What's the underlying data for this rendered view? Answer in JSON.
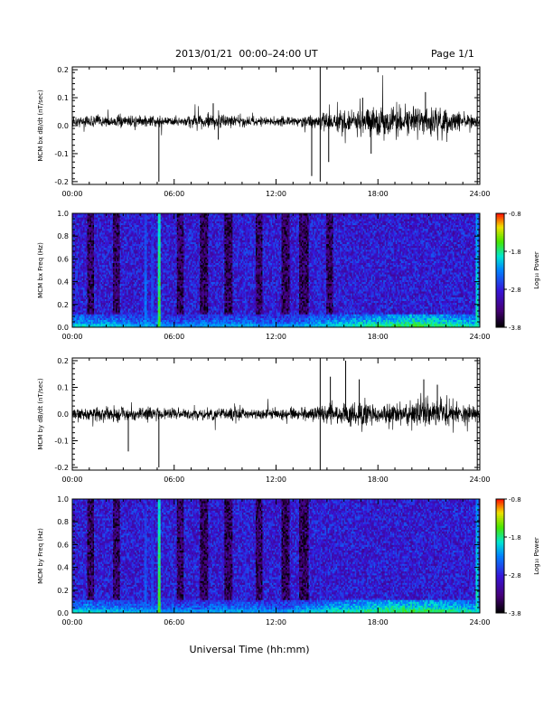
{
  "header": {
    "title": "2013/01/21  00:00–24:00 UT",
    "page": "Page 1/1"
  },
  "footer": {
    "xlabel": "Universal Time (hh:mm)"
  },
  "colorbar": {
    "label": "Log₁₀ Power",
    "ticks": [
      "-0.8",
      "-1.8",
      "-2.8",
      "-3.8"
    ],
    "range": [
      -3.8,
      -0.8
    ]
  },
  "chart_data": [
    {
      "type": "line",
      "id": "bx-timeseries",
      "ylabel": "MCM bx dB/dt (nT/sec)",
      "xlim": [
        0,
        24
      ],
      "ylim": [
        -0.21,
        0.21
      ],
      "xticks": [
        "00:00",
        "06:00",
        "12:00",
        "18:00",
        "24:00"
      ],
      "yticks": [
        "0.2",
        "0.1",
        "0.0",
        "-0.1",
        "-0.2"
      ],
      "baseline": 0.015,
      "envelope": [
        [
          0,
          0.03
        ],
        [
          2,
          0.035
        ],
        [
          4,
          0.035
        ],
        [
          6,
          0.03
        ],
        [
          8,
          0.045
        ],
        [
          10,
          0.03
        ],
        [
          12,
          0.025
        ],
        [
          14,
          0.035
        ],
        [
          15,
          0.05
        ],
        [
          16,
          0.06
        ],
        [
          17,
          0.075
        ],
        [
          18,
          0.09
        ],
        [
          19,
          0.08
        ],
        [
          20,
          0.085
        ],
        [
          21,
          0.09
        ],
        [
          22,
          0.08
        ],
        [
          23,
          0.05
        ],
        [
          24,
          0.03
        ]
      ],
      "spikes": [
        [
          5.1,
          -0.2
        ],
        [
          8.3,
          0.08
        ],
        [
          8.6,
          -0.05
        ],
        [
          14.6,
          0.21
        ],
        [
          14.6,
          -0.2
        ],
        [
          14.1,
          -0.18
        ],
        [
          15.1,
          -0.13
        ],
        [
          17.6,
          -0.1
        ],
        [
          17.1,
          0.1
        ],
        [
          20.8,
          0.12
        ],
        [
          23.85,
          0.2
        ],
        [
          23.85,
          -0.21
        ]
      ]
    },
    {
      "type": "heatmap",
      "id": "bx-spectrogram",
      "ylabel": "MCM bx Freq (Hz)",
      "xlim": [
        0,
        24
      ],
      "ylim": [
        0,
        1.0
      ],
      "xticks": [
        "00:00",
        "06:00",
        "12:00",
        "18:00",
        "24:00"
      ],
      "yticks": [
        "1.0",
        "0.8",
        "0.6",
        "0.4",
        "0.2",
        "0.0"
      ],
      "zlim": [
        -3.8,
        -0.8
      ],
      "bright_lines": [
        [
          5.1,
          -1.6
        ],
        [
          4.3,
          -2.3
        ],
        [
          4.7,
          -2.5
        ],
        [
          10.2,
          -2.6
        ],
        [
          11.8,
          -2.7
        ],
        [
          14.6,
          -2.6
        ],
        [
          23.85,
          -1.9
        ]
      ],
      "dark_bands": [
        [
          0.9,
          1.3
        ],
        [
          2.4,
          2.8
        ],
        [
          6.2,
          6.6
        ],
        [
          7.5,
          8.0
        ],
        [
          9.0,
          9.4
        ],
        [
          10.8,
          11.2
        ],
        [
          12.3,
          12.8
        ],
        [
          13.4,
          13.9
        ],
        [
          15.0,
          15.4
        ]
      ],
      "low_freq_activity": [
        [
          0,
          -2.6
        ],
        [
          6,
          -2.9
        ],
        [
          10,
          -2.8
        ],
        [
          12,
          -2.9
        ],
        [
          16,
          -2.6
        ],
        [
          18,
          -2.4
        ],
        [
          20,
          -2.3
        ],
        [
          22,
          -2.4
        ],
        [
          24,
          -2.6
        ]
      ]
    },
    {
      "type": "line",
      "id": "by-timeseries",
      "ylabel": "MCM by dB/dt (nT/sec)",
      "xlim": [
        0,
        24
      ],
      "ylim": [
        -0.21,
        0.21
      ],
      "xticks": [
        "00:00",
        "06:00",
        "12:00",
        "18:00",
        "24:00"
      ],
      "yticks": [
        "0.2",
        "0.1",
        "0.0",
        "-0.1",
        "-0.2"
      ],
      "baseline": 0.0,
      "envelope": [
        [
          0,
          0.04
        ],
        [
          2,
          0.045
        ],
        [
          4,
          0.04
        ],
        [
          6,
          0.035
        ],
        [
          8,
          0.04
        ],
        [
          10,
          0.04
        ],
        [
          12,
          0.035
        ],
        [
          14,
          0.045
        ],
        [
          15,
          0.06
        ],
        [
          16,
          0.07
        ],
        [
          17,
          0.08
        ],
        [
          18,
          0.07
        ],
        [
          19,
          0.07
        ],
        [
          20,
          0.08
        ],
        [
          21,
          0.09
        ],
        [
          22,
          0.085
        ],
        [
          23,
          0.06
        ],
        [
          24,
          0.04
        ]
      ],
      "spikes": [
        [
          3.3,
          -0.14
        ],
        [
          5.1,
          -0.2
        ],
        [
          14.6,
          0.21
        ],
        [
          14.6,
          -0.21
        ],
        [
          15.2,
          0.14
        ],
        [
          16.1,
          0.2
        ],
        [
          16.9,
          0.13
        ],
        [
          20.7,
          0.13
        ],
        [
          21.5,
          0.11
        ],
        [
          23.85,
          0.21
        ],
        [
          23.85,
          -0.21
        ]
      ]
    },
    {
      "type": "heatmap",
      "id": "by-spectrogram",
      "ylabel": "MCM by Freq (Hz)",
      "xlim": [
        0,
        24
      ],
      "ylim": [
        0,
        1.0
      ],
      "xticks": [
        "00:00",
        "06:00",
        "12:00",
        "18:00",
        "24:00"
      ],
      "yticks": [
        "1.0",
        "0.8",
        "0.6",
        "0.4",
        "0.2",
        "0.0"
      ],
      "zlim": [
        -3.8,
        -0.8
      ],
      "bright_lines": [
        [
          5.1,
          -1.6
        ],
        [
          4.3,
          -2.4
        ],
        [
          4.7,
          -2.5
        ],
        [
          10.2,
          -2.6
        ],
        [
          14.6,
          -2.6
        ],
        [
          23.85,
          -1.9
        ]
      ],
      "dark_bands": [
        [
          0.9,
          1.3
        ],
        [
          2.4,
          2.8
        ],
        [
          6.2,
          6.6
        ],
        [
          7.5,
          8.0
        ],
        [
          9.0,
          9.4
        ],
        [
          10.8,
          11.2
        ],
        [
          12.3,
          12.8
        ],
        [
          13.4,
          13.9
        ]
      ],
      "low_freq_activity": [
        [
          0,
          -2.6
        ],
        [
          6,
          -2.9
        ],
        [
          10,
          -2.8
        ],
        [
          12,
          -2.9
        ],
        [
          16,
          -2.5
        ],
        [
          18,
          -2.4
        ],
        [
          20,
          -2.3
        ],
        [
          22,
          -2.4
        ],
        [
          24,
          -2.6
        ]
      ]
    }
  ]
}
